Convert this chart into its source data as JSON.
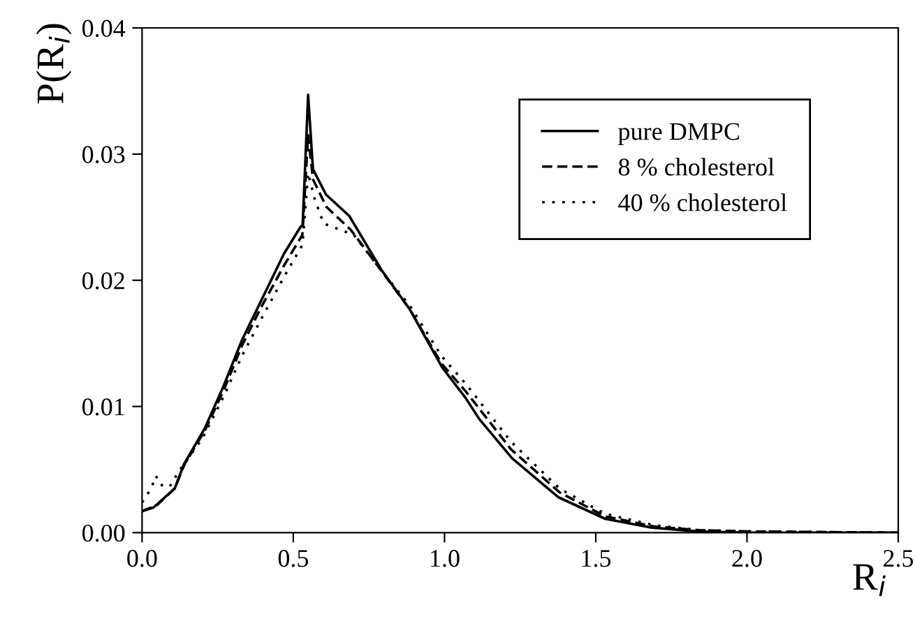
{
  "chart_data": {
    "type": "line",
    "xlabel": "R$_{i}$",
    "ylabel": "P(R$_{i}$)",
    "xlim": [
      0,
      2.5
    ],
    "ylim": [
      0,
      0.04
    ],
    "xticks": [
      {
        "value": 0,
        "label": "0.0"
      },
      {
        "value": 0.5,
        "label": "0.5"
      },
      {
        "value": 1,
        "label": "1.0"
      },
      {
        "value": 1.5,
        "label": "1.5"
      },
      {
        "value": 2,
        "label": "2.0"
      },
      {
        "value": 2.5,
        "label": "2.5"
      }
    ],
    "yticks": [
      {
        "value": 0,
        "label": "0.00"
      },
      {
        "value": 0.01,
        "label": "0.01"
      },
      {
        "value": 0.02,
        "label": "0.02"
      },
      {
        "value": 0.03,
        "label": "0.03"
      },
      {
        "value": 0.04,
        "label": "0.04"
      }
    ],
    "legend": "right",
    "grid": false,
    "marker": "none",
    "series": [
      {
        "name": "pure DMPC",
        "color": "#000000",
        "line_style": "solid",
        "x": [
          0,
          0.038,
          0.108,
          0.138,
          0.208,
          0.269,
          0.331,
          0.392,
          0.469,
          0.523,
          0.531,
          0.549,
          0.565,
          0.608,
          0.685,
          0.792,
          0.885,
          0.992,
          1.069,
          1.115,
          1.223,
          1.377,
          1.531,
          1.685,
          1.838,
          2.0,
          2.5
        ],
        "values": [
          0.0017,
          0.002,
          0.0035,
          0.0054,
          0.0083,
          0.0116,
          0.0153,
          0.0183,
          0.0221,
          0.0242,
          0.0244,
          0.0347,
          0.0288,
          0.0268,
          0.0251,
          0.0208,
          0.0177,
          0.0131,
          0.0107,
          0.009,
          0.0059,
          0.0028,
          0.0011,
          0.0004,
          0.0001,
          0,
          0
        ]
      },
      {
        "name": "8 % cholesterol",
        "color": "#000000",
        "line_style": "dashed",
        "x": [
          0,
          0.05,
          0.108,
          0.14,
          0.21,
          0.27,
          0.33,
          0.39,
          0.47,
          0.53,
          0.549,
          0.565,
          0.61,
          0.69,
          0.79,
          0.885,
          0.99,
          1.07,
          1.22,
          1.38,
          1.53,
          1.69,
          1.84,
          2.0,
          2.5
        ],
        "values": [
          0.0017,
          0.0022,
          0.0035,
          0.0054,
          0.0082,
          0.0113,
          0.0148,
          0.0177,
          0.0212,
          0.0236,
          0.0315,
          0.028,
          0.0258,
          0.024,
          0.0208,
          0.0177,
          0.0134,
          0.0112,
          0.0066,
          0.0032,
          0.0013,
          0.0005,
          0.0002,
          0.0001,
          0
        ]
      },
      {
        "name": "40 % cholesterol",
        "color": "#000000",
        "line_style": "dotted",
        "x": [
          0,
          0.03,
          0.046,
          0.06,
          0.09,
          0.12,
          0.2,
          0.27,
          0.33,
          0.4,
          0.47,
          0.53,
          0.549,
          0.57,
          0.6,
          0.7,
          0.79,
          0.885,
          0.99,
          1.07,
          1.22,
          1.38,
          1.53,
          1.69,
          1.84,
          2.0,
          2.5
        ],
        "values": [
          0.0024,
          0.0035,
          0.0045,
          0.0038,
          0.0036,
          0.0048,
          0.0075,
          0.0108,
          0.014,
          0.0172,
          0.0203,
          0.0228,
          0.0285,
          0.0265,
          0.0245,
          0.0236,
          0.0208,
          0.018,
          0.014,
          0.0118,
          0.0072,
          0.0035,
          0.0015,
          0.0006,
          0.0002,
          0.0001,
          0
        ]
      }
    ]
  }
}
